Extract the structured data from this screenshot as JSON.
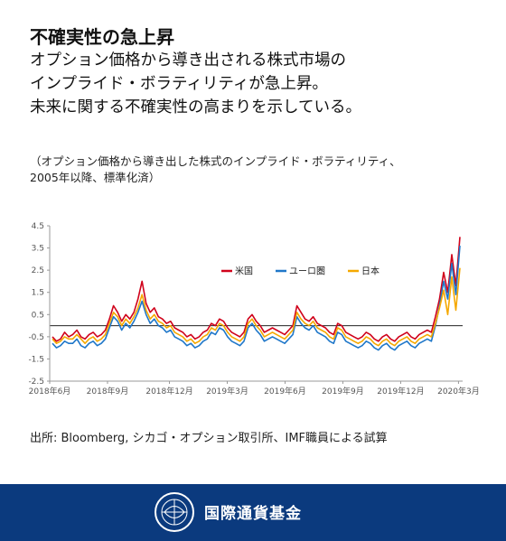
{
  "header": {
    "title": "不確実性の急上昇",
    "subtitle": "オプション価格から導き出される株式市場の\nインプライド・ボラティリティが急上昇。\n未来に関する不確実性の高まりを示している。"
  },
  "note": "（オプション価格から導き出した株式のインプライド・ボラティリティ、\n2005年以降、標準化済）",
  "source": "出所: Bloomberg, シカゴ・オプション取引所、IMF職員による試算",
  "footer": {
    "org_name": "国際通貨基金",
    "seal_icon": "imf-seal-icon"
  },
  "chart_data": {
    "type": "line",
    "ylim": [
      -2.5,
      4.5
    ],
    "yticks": [
      "4.5",
      "3.5",
      "2.5",
      "1.5",
      "0.5",
      "-0.5",
      "-1.5",
      "-2.5"
    ],
    "ytick_values": [
      4.5,
      3.5,
      2.5,
      1.5,
      0.5,
      -0.5,
      -1.5,
      -2.5
    ],
    "xticks": [
      "2018年6月",
      "2018年9月",
      "2018年12月",
      "2019年3月",
      "2019年6月",
      "2019年9月",
      "2019年12月",
      "2020年3月"
    ],
    "x_tick_fraction": [
      0.0,
      0.14,
      0.29,
      0.43,
      0.57,
      0.71,
      0.85,
      0.99
    ],
    "baseline": 0,
    "legend_position": "top-center",
    "series": [
      {
        "name": "米国",
        "color": "#d0021b",
        "values": [
          -0.5,
          -0.7,
          -0.6,
          -0.3,
          -0.5,
          -0.4,
          -0.2,
          -0.5,
          -0.6,
          -0.4,
          -0.3,
          -0.5,
          -0.4,
          -0.2,
          0.3,
          0.9,
          0.6,
          0.2,
          0.5,
          0.3,
          0.6,
          1.2,
          2.0,
          1.0,
          0.6,
          0.8,
          0.4,
          0.3,
          0.1,
          0.2,
          -0.1,
          -0.2,
          -0.3,
          -0.5,
          -0.4,
          -0.6,
          -0.5,
          -0.3,
          -0.2,
          0.1,
          0.0,
          0.3,
          0.2,
          -0.1,
          -0.3,
          -0.4,
          -0.5,
          -0.3,
          0.3,
          0.5,
          0.2,
          0.0,
          -0.3,
          -0.2,
          -0.1,
          -0.2,
          -0.3,
          -0.4,
          -0.2,
          0.0,
          0.9,
          0.6,
          0.3,
          0.2,
          0.4,
          0.1,
          0.0,
          -0.1,
          -0.3,
          -0.4,
          0.1,
          0.0,
          -0.3,
          -0.4,
          -0.5,
          -0.6,
          -0.5,
          -0.3,
          -0.4,
          -0.6,
          -0.7,
          -0.5,
          -0.4,
          -0.6,
          -0.7,
          -0.5,
          -0.4,
          -0.3,
          -0.5,
          -0.6,
          -0.4,
          -0.3,
          -0.2,
          -0.3,
          0.4,
          1.2,
          2.4,
          1.5,
          3.2,
          1.8,
          4.0
        ]
      },
      {
        "name": "ユーロ圏",
        "color": "#1f77c9",
        "values": [
          -0.8,
          -1.0,
          -0.9,
          -0.7,
          -0.8,
          -0.8,
          -0.6,
          -0.9,
          -1.0,
          -0.8,
          -0.7,
          -0.9,
          -0.8,
          -0.6,
          -0.1,
          0.4,
          0.2,
          -0.2,
          0.1,
          -0.1,
          0.2,
          0.6,
          1.1,
          0.5,
          0.1,
          0.3,
          0.0,
          -0.1,
          -0.3,
          -0.2,
          -0.5,
          -0.6,
          -0.7,
          -0.9,
          -0.8,
          -1.0,
          -0.9,
          -0.7,
          -0.6,
          -0.3,
          -0.4,
          -0.1,
          -0.2,
          -0.5,
          -0.7,
          -0.8,
          -0.9,
          -0.7,
          -0.1,
          0.1,
          -0.2,
          -0.4,
          -0.7,
          -0.6,
          -0.5,
          -0.6,
          -0.7,
          -0.8,
          -0.6,
          -0.4,
          0.4,
          0.1,
          -0.1,
          -0.2,
          0.0,
          -0.3,
          -0.4,
          -0.5,
          -0.7,
          -0.8,
          -0.3,
          -0.4,
          -0.7,
          -0.8,
          -0.9,
          -1.0,
          -0.9,
          -0.7,
          -0.8,
          -1.0,
          -1.1,
          -0.9,
          -0.8,
          -1.0,
          -1.1,
          -0.9,
          -0.8,
          -0.7,
          -0.9,
          -1.0,
          -0.8,
          -0.7,
          -0.6,
          -0.7,
          0.0,
          0.9,
          2.0,
          1.2,
          2.8,
          1.4,
          3.6
        ]
      },
      {
        "name": "日本",
        "color": "#f5a800",
        "values": [
          -0.6,
          -0.8,
          -0.7,
          -0.5,
          -0.6,
          -0.6,
          -0.4,
          -0.6,
          -0.8,
          -0.6,
          -0.5,
          -0.7,
          -0.6,
          -0.4,
          0.1,
          0.6,
          0.4,
          0.0,
          0.3,
          0.1,
          0.4,
          0.8,
          1.4,
          0.7,
          0.3,
          0.5,
          0.2,
          0.1,
          -0.1,
          0.0,
          -0.3,
          -0.4,
          -0.5,
          -0.7,
          -0.6,
          -0.8,
          -0.7,
          -0.5,
          -0.4,
          -0.1,
          -0.2,
          0.1,
          0.0,
          -0.3,
          -0.5,
          -0.6,
          -0.7,
          -0.5,
          0.1,
          0.3,
          0.0,
          -0.2,
          -0.5,
          -0.4,
          -0.3,
          -0.4,
          -0.5,
          -0.6,
          -0.4,
          -0.2,
          0.6,
          0.3,
          0.1,
          0.0,
          0.2,
          -0.1,
          -0.2,
          -0.3,
          -0.5,
          -0.6,
          -0.1,
          -0.2,
          -0.5,
          -0.6,
          -0.7,
          -0.8,
          -0.7,
          -0.5,
          -0.6,
          -0.8,
          -0.9,
          -0.7,
          -0.6,
          -0.8,
          -0.9,
          -0.7,
          -0.6,
          -0.5,
          -0.7,
          -0.8,
          -0.6,
          -0.5,
          -0.4,
          -0.5,
          0.1,
          0.8,
          1.6,
          0.5,
          2.2,
          0.7,
          2.6
        ]
      }
    ]
  }
}
